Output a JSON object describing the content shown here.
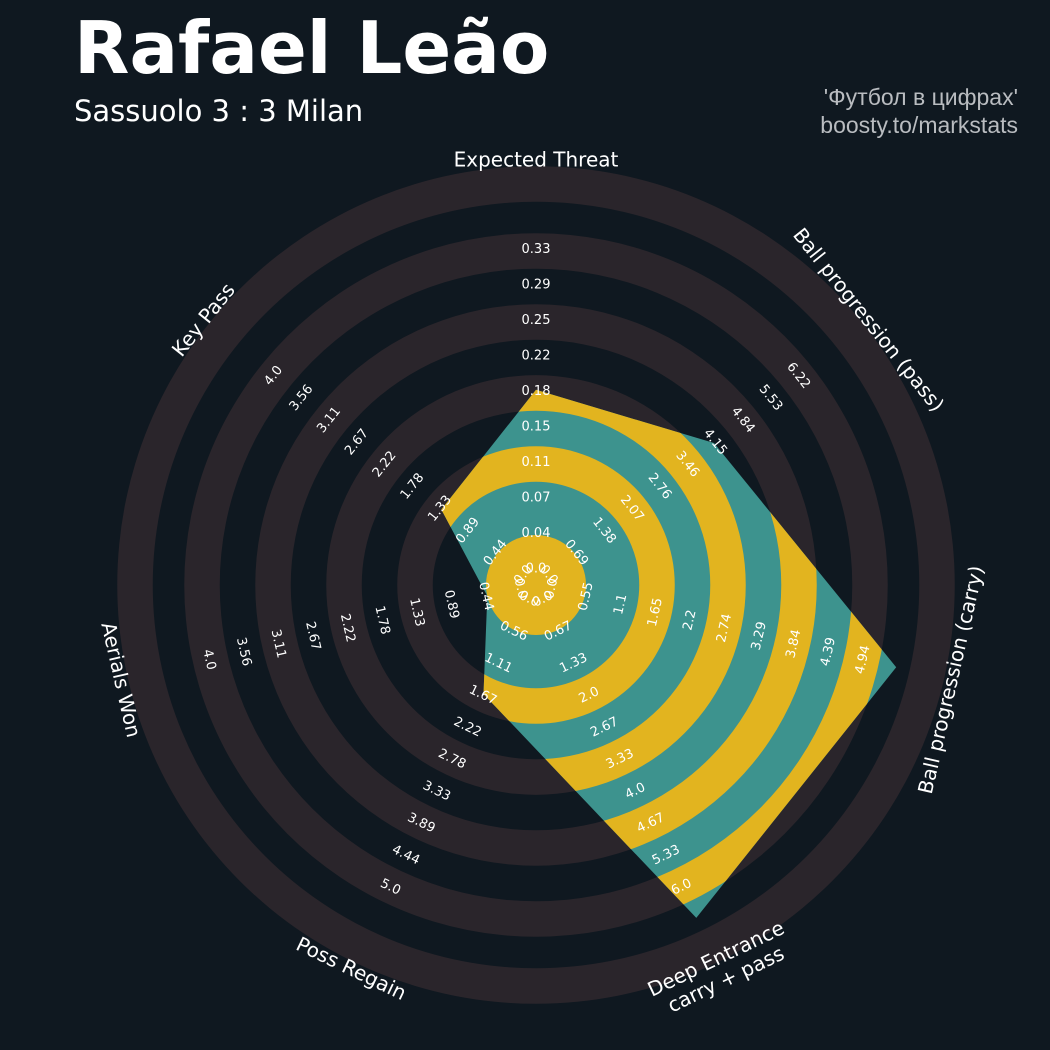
{
  "header": {
    "title": "Rafael Leão",
    "subtitle": "Sassuolo 3 : 3 Milan",
    "credit_line1": "'Футбол в цифрах'",
    "credit_line2": "boosty.to/markstats"
  },
  "colors": {
    "background": "#0f1820",
    "ring": "#2a252b",
    "polygon_teal": "#3d938e",
    "polygon_yellow": "#e2b41f",
    "text": "#ffffff",
    "credit": "#b9bcc0"
  },
  "chart_data": {
    "type": "radar",
    "title": "Rafael Leão",
    "subtitle": "Sassuolo 3 : 3 Milan",
    "axes": [
      {
        "label": [
          "Expected Threat"
        ],
        "ticks": [
          "0.0",
          "0.04",
          "0.07",
          "0.11",
          "0.15",
          "0.18",
          "0.22",
          "0.25",
          "0.29",
          "0.33"
        ],
        "value": 0.15
      },
      {
        "label": [
          "Ball progression (pass)"
        ],
        "ticks": [
          "0.0",
          "0.69",
          "1.38",
          "2.07",
          "2.76",
          "3.46",
          "4.15",
          "4.84",
          "5.53",
          "6.22"
        ],
        "value": 3.46
      },
      {
        "label": [
          "Ball progression (carry)"
        ],
        "ticks": [
          "0.0",
          "0.55",
          "1.1",
          "1.65",
          "2.2",
          "2.74",
          "3.29",
          "3.84",
          "4.39",
          "4.94"
        ],
        "value": 4.94
      },
      {
        "label": [
          "Deep Entrance",
          "carry + pass"
        ],
        "ticks": [
          "0.0",
          "0.67",
          "1.33",
          "2.0",
          "2.67",
          "3.33",
          "4.0",
          "4.67",
          "5.33",
          "6.0"
        ],
        "value": 6.0
      },
      {
        "label": [
          "Poss Regain"
        ],
        "ticks": [
          "0.0",
          "0.56",
          "1.11",
          "1.67",
          "2.22",
          "2.78",
          "3.33",
          "3.89",
          "4.44",
          "5.0"
        ],
        "value": 1.11
      },
      {
        "label": [
          "Aerials Won"
        ],
        "ticks": [
          "0.0",
          "0.44",
          "0.89",
          "1.33",
          "1.78",
          "2.22",
          "2.67",
          "3.11",
          "3.56",
          "4.0"
        ],
        "value": 0.0
      },
      {
        "label": [
          "Key Pass"
        ],
        "ticks": [
          "0.0",
          "0.44",
          "0.89",
          "1.33",
          "1.78",
          "2.22",
          "2.67",
          "3.11",
          "3.56",
          "4.0"
        ],
        "value": 0.89
      }
    ]
  }
}
